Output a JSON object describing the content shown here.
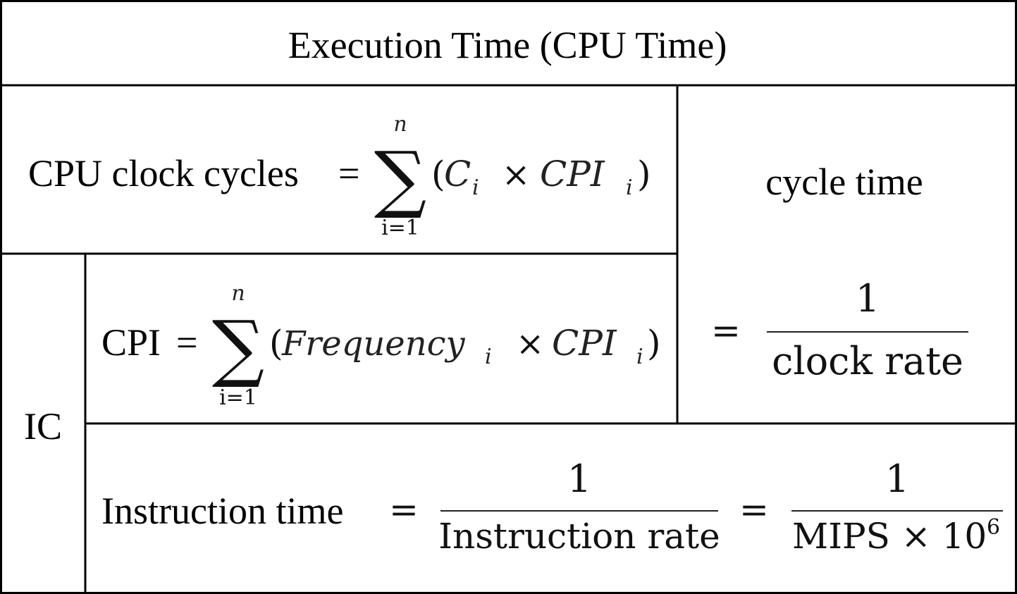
{
  "title": "Execution Time (CPU Time)",
  "clock_cycles": {
    "label": "CPU clock cycles",
    "equals": "=",
    "sum_upper": "n",
    "sum_lower": "i=1",
    "sigma": "∑",
    "open_paren": "(",
    "term1": "C",
    "sub1": "i",
    "times": "×",
    "term2": "CPI",
    "sub2": "i",
    "close_paren": ")"
  },
  "cycle_time": {
    "label": "cycle time",
    "equals": "=",
    "numerator": "1",
    "denominator": "clock rate"
  },
  "ic": {
    "label": "IC"
  },
  "cpi": {
    "label": "CPI",
    "equals": "=",
    "sum_upper": "n",
    "sum_lower": "i=1",
    "sigma": "∑",
    "open_paren": "(",
    "term1": "Frequency",
    "sub1": "i",
    "times": "×",
    "term2": "CPI",
    "sub2": "i",
    "close_paren": ")"
  },
  "instruction_time": {
    "label": "Instruction time",
    "equals1": "=",
    "numerator1": "1",
    "denominator1": "Instruction rate",
    "equals2": "=",
    "numerator2": "1",
    "denominator2_main": "MIPS × 10",
    "denominator2_exp": "6"
  }
}
